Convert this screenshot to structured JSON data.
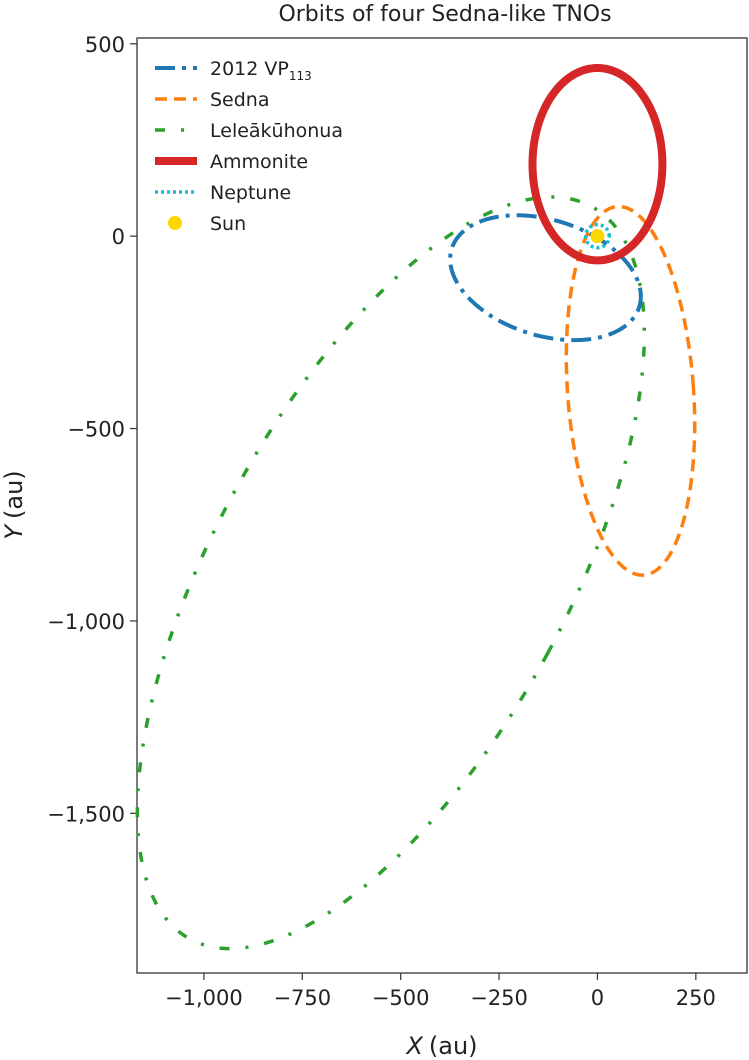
{
  "chart_data": {
    "type": "line",
    "title": "Orbits of four Sedna-like TNOs",
    "xlabel": {
      "var": "X",
      "unit": "(au)"
    },
    "ylabel": {
      "var": "Y",
      "unit": "(au)"
    },
    "xlim": [
      -1170,
      380
    ],
    "ylim": [
      -1915,
      515
    ],
    "xticks": [
      {
        "value": -1000,
        "label": "−1,000"
      },
      {
        "value": -750,
        "label": "−750"
      },
      {
        "value": -500,
        "label": "−500"
      },
      {
        "value": -250,
        "label": "−250"
      },
      {
        "value": 0,
        "label": "0"
      },
      {
        "value": 250,
        "label": "250"
      }
    ],
    "yticks": [
      {
        "value": 500,
        "label": "500"
      },
      {
        "value": 0,
        "label": "0"
      },
      {
        "value": -500,
        "label": "−500"
      },
      {
        "value": -1000,
        "label": "−1,000"
      },
      {
        "value": -1500,
        "label": "−1,500"
      }
    ],
    "legend_position": "top-left",
    "grid": false,
    "series": [
      {
        "name": "2012 VP",
        "name_sub": "113",
        "color": "#1f77b4",
        "style": "dash-dot",
        "orbit": {
          "center": [
            -132,
            -108
          ],
          "semi_axes": [
            250,
            150
          ],
          "rotation_deg": -18
        }
      },
      {
        "name": "Sedna",
        "name_sub": "",
        "color": "#ff7f0e",
        "style": "dashed",
        "orbit": {
          "center": [
            84,
            -402
          ],
          "semi_axes": [
            160,
            480
          ],
          "rotation_deg": 4
        }
      },
      {
        "name": "Leleākūhonua",
        "name_sub": "",
        "color": "#2ca02c",
        "style": "loose-dash-dot",
        "orbit": {
          "center": [
            -525,
            -875
          ],
          "semi_axes": [
            450,
            1080
          ],
          "rotation_deg": -28
        }
      },
      {
        "name": "Ammonite",
        "name_sub": "",
        "color": "#d62728",
        "style": "solid-thick",
        "orbit": {
          "center": [
            0,
            187
          ],
          "semi_axes": [
            165,
            250
          ],
          "rotation_deg": 0
        }
      },
      {
        "name": "Neptune",
        "name_sub": "",
        "color": "#17becf",
        "style": "dotted",
        "orbit": {
          "center": [
            0,
            0
          ],
          "semi_axes": [
            30,
            30
          ],
          "rotation_deg": 0
        }
      },
      {
        "name": "Sun",
        "name_sub": "",
        "color": "#ffd700",
        "style": "marker",
        "point": [
          0,
          0
        ]
      }
    ]
  }
}
